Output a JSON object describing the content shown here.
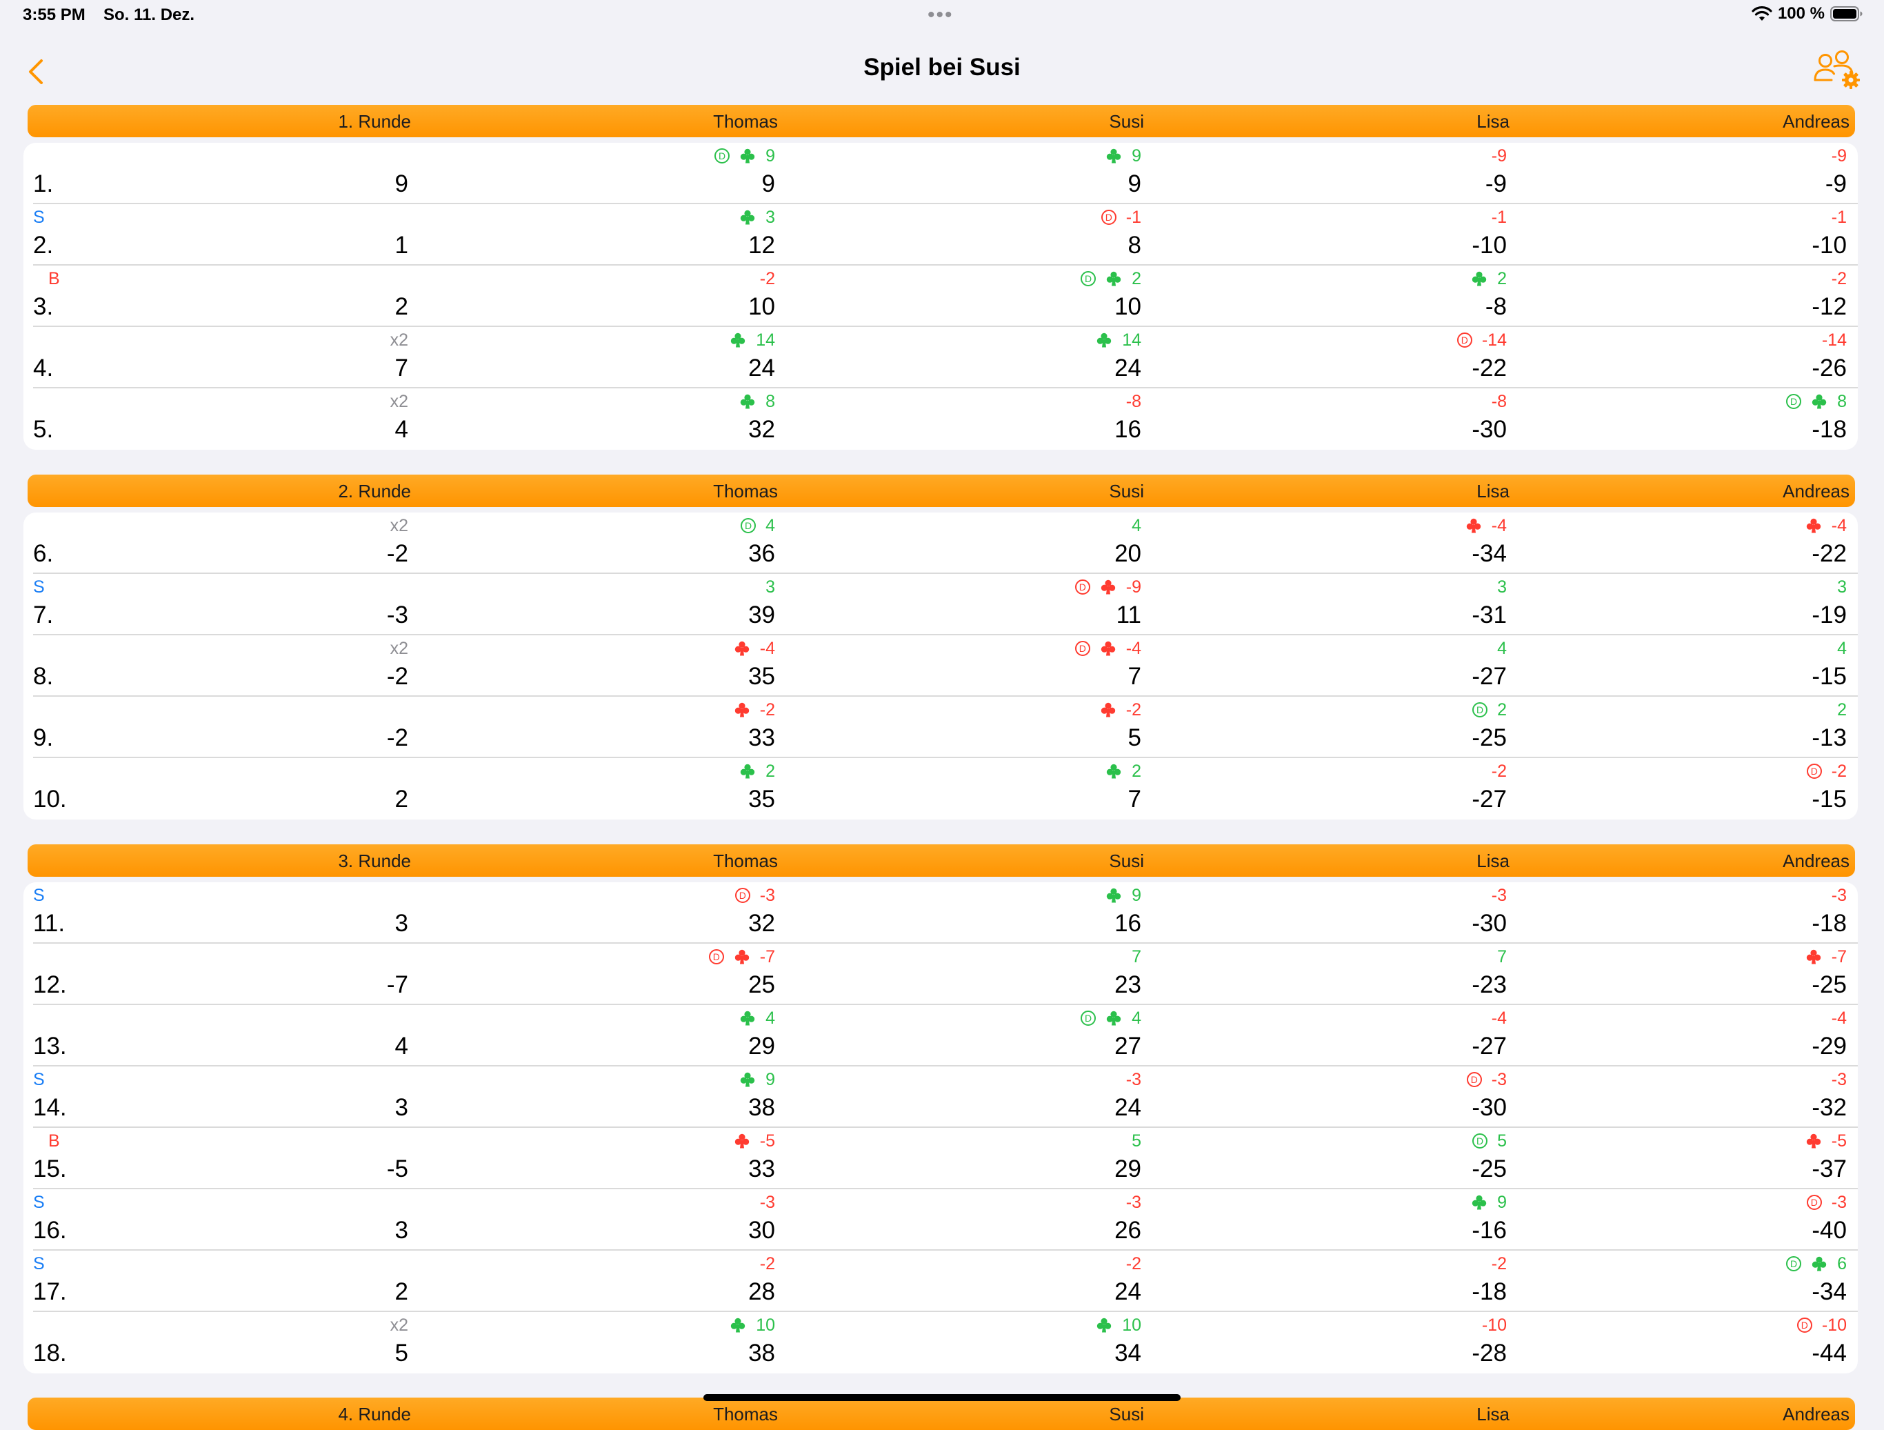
{
  "status": {
    "time": "3:55 PM",
    "date": "So. 11. Dez.",
    "dots": "•••",
    "battery": "100 %"
  },
  "nav": {
    "title": "Spiel bei Susi"
  },
  "colors": {
    "accent": "#ff9500",
    "positive": "#2bc04b",
    "negative": "#ff3b30",
    "solo": "#1a7ef5",
    "multiplier": "#8e8e93"
  },
  "sections": [
    {
      "headers": [
        "1. Runde",
        "Thomas",
        "Susi",
        "Lisa",
        "Andreas"
      ],
      "rows": [
        {
          "n": "1.",
          "mark": "",
          "mult": "",
          "game": "9",
          "cells": [
            {
              "delta": "9",
              "total": "9",
              "dealer": true,
              "club": true
            },
            {
              "delta": "9",
              "total": "9",
              "dealer": false,
              "club": true
            },
            {
              "delta": "-9",
              "total": "-9",
              "dealer": false,
              "club": false
            },
            {
              "delta": "-9",
              "total": "-9",
              "dealer": false,
              "club": false
            }
          ]
        },
        {
          "n": "2.",
          "mark": "S",
          "mult": "",
          "game": "1",
          "cells": [
            {
              "delta": "3",
              "total": "12",
              "dealer": false,
              "club": true
            },
            {
              "delta": "-1",
              "total": "8",
              "dealer": true,
              "club": false
            },
            {
              "delta": "-1",
              "total": "-10",
              "dealer": false,
              "club": false
            },
            {
              "delta": "-1",
              "total": "-10",
              "dealer": false,
              "club": false
            }
          ]
        },
        {
          "n": "3.",
          "mark": "B",
          "mult": "",
          "game": "2",
          "cells": [
            {
              "delta": "-2",
              "total": "10",
              "dealer": false,
              "club": false
            },
            {
              "delta": "2",
              "total": "10",
              "dealer": true,
              "club": true
            },
            {
              "delta": "2",
              "total": "-8",
              "dealer": false,
              "club": true
            },
            {
              "delta": "-2",
              "total": "-12",
              "dealer": false,
              "club": false
            }
          ]
        },
        {
          "n": "4.",
          "mark": "",
          "mult": "x2",
          "game": "7",
          "cells": [
            {
              "delta": "14",
              "total": "24",
              "dealer": false,
              "club": true
            },
            {
              "delta": "14",
              "total": "24",
              "dealer": false,
              "club": true
            },
            {
              "delta": "-14",
              "total": "-22",
              "dealer": true,
              "club": false
            },
            {
              "delta": "-14",
              "total": "-26",
              "dealer": false,
              "club": false
            }
          ]
        },
        {
          "n": "5.",
          "mark": "",
          "mult": "x2",
          "game": "4",
          "cells": [
            {
              "delta": "8",
              "total": "32",
              "dealer": false,
              "club": true
            },
            {
              "delta": "-8",
              "total": "16",
              "dealer": false,
              "club": false
            },
            {
              "delta": "-8",
              "total": "-30",
              "dealer": false,
              "club": false
            },
            {
              "delta": "8",
              "total": "-18",
              "dealer": true,
              "club": true
            }
          ]
        }
      ]
    },
    {
      "headers": [
        "2. Runde",
        "Thomas",
        "Susi",
        "Lisa",
        "Andreas"
      ],
      "rows": [
        {
          "n": "6.",
          "mark": "",
          "mult": "x2",
          "game": "-2",
          "cells": [
            {
              "delta": "4",
              "total": "36",
              "dealer": true,
              "club": false
            },
            {
              "delta": "4",
              "total": "20",
              "dealer": false,
              "club": false
            },
            {
              "delta": "-4",
              "total": "-34",
              "dealer": false,
              "club": true
            },
            {
              "delta": "-4",
              "total": "-22",
              "dealer": false,
              "club": true
            }
          ]
        },
        {
          "n": "7.",
          "mark": "S",
          "mult": "",
          "game": "-3",
          "cells": [
            {
              "delta": "3",
              "total": "39",
              "dealer": false,
              "club": false
            },
            {
              "delta": "-9",
              "total": "11",
              "dealer": true,
              "club": true
            },
            {
              "delta": "3",
              "total": "-31",
              "dealer": false,
              "club": false
            },
            {
              "delta": "3",
              "total": "-19",
              "dealer": false,
              "club": false
            }
          ]
        },
        {
          "n": "8.",
          "mark": "",
          "mult": "x2",
          "game": "-2",
          "cells": [
            {
              "delta": "-4",
              "total": "35",
              "dealer": false,
              "club": true
            },
            {
              "delta": "-4",
              "total": "7",
              "dealer": true,
              "club": true
            },
            {
              "delta": "4",
              "total": "-27",
              "dealer": false,
              "club": false
            },
            {
              "delta": "4",
              "total": "-15",
              "dealer": false,
              "club": false
            }
          ]
        },
        {
          "n": "9.",
          "mark": "",
          "mult": "",
          "game": "-2",
          "cells": [
            {
              "delta": "-2",
              "total": "33",
              "dealer": false,
              "club": true
            },
            {
              "delta": "-2",
              "total": "5",
              "dealer": false,
              "club": true
            },
            {
              "delta": "2",
              "total": "-25",
              "dealer": true,
              "club": false
            },
            {
              "delta": "2",
              "total": "-13",
              "dealer": false,
              "club": false
            }
          ]
        },
        {
          "n": "10.",
          "mark": "",
          "mult": "",
          "game": "2",
          "cells": [
            {
              "delta": "2",
              "total": "35",
              "dealer": false,
              "club": true
            },
            {
              "delta": "2",
              "total": "7",
              "dealer": false,
              "club": true
            },
            {
              "delta": "-2",
              "total": "-27",
              "dealer": false,
              "club": false
            },
            {
              "delta": "-2",
              "total": "-15",
              "dealer": true,
              "club": false
            }
          ]
        }
      ]
    },
    {
      "headers": [
        "3. Runde",
        "Thomas",
        "Susi",
        "Lisa",
        "Andreas"
      ],
      "rows": [
        {
          "n": "11.",
          "mark": "S",
          "mult": "",
          "game": "3",
          "cells": [
            {
              "delta": "-3",
              "total": "32",
              "dealer": true,
              "club": false
            },
            {
              "delta": "9",
              "total": "16",
              "dealer": false,
              "club": true
            },
            {
              "delta": "-3",
              "total": "-30",
              "dealer": false,
              "club": false
            },
            {
              "delta": "-3",
              "total": "-18",
              "dealer": false,
              "club": false
            }
          ]
        },
        {
          "n": "12.",
          "mark": "",
          "mult": "",
          "game": "-7",
          "cells": [
            {
              "delta": "-7",
              "total": "25",
              "dealer": true,
              "club": true
            },
            {
              "delta": "7",
              "total": "23",
              "dealer": false,
              "club": false
            },
            {
              "delta": "7",
              "total": "-23",
              "dealer": false,
              "club": false
            },
            {
              "delta": "-7",
              "total": "-25",
              "dealer": false,
              "club": true
            }
          ]
        },
        {
          "n": "13.",
          "mark": "",
          "mult": "",
          "game": "4",
          "cells": [
            {
              "delta": "4",
              "total": "29",
              "dealer": false,
              "club": true
            },
            {
              "delta": "4",
              "total": "27",
              "dealer": true,
              "club": true
            },
            {
              "delta": "-4",
              "total": "-27",
              "dealer": false,
              "club": false
            },
            {
              "delta": "-4",
              "total": "-29",
              "dealer": false,
              "club": false
            }
          ]
        },
        {
          "n": "14.",
          "mark": "S",
          "mult": "",
          "game": "3",
          "cells": [
            {
              "delta": "9",
              "total": "38",
              "dealer": false,
              "club": true
            },
            {
              "delta": "-3",
              "total": "24",
              "dealer": false,
              "club": false
            },
            {
              "delta": "-3",
              "total": "-30",
              "dealer": true,
              "club": false
            },
            {
              "delta": "-3",
              "total": "-32",
              "dealer": false,
              "club": false
            }
          ]
        },
        {
          "n": "15.",
          "mark": "B",
          "mult": "",
          "game": "-5",
          "cells": [
            {
              "delta": "-5",
              "total": "33",
              "dealer": false,
              "club": true
            },
            {
              "delta": "5",
              "total": "29",
              "dealer": false,
              "club": false
            },
            {
              "delta": "5",
              "total": "-25",
              "dealer": true,
              "club": false
            },
            {
              "delta": "-5",
              "total": "-37",
              "dealer": false,
              "club": true
            }
          ]
        },
        {
          "n": "16.",
          "mark": "S",
          "mult": "",
          "game": "3",
          "cells": [
            {
              "delta": "-3",
              "total": "30",
              "dealer": false,
              "club": false
            },
            {
              "delta": "-3",
              "total": "26",
              "dealer": false,
              "club": false
            },
            {
              "delta": "9",
              "total": "-16",
              "dealer": false,
              "club": true
            },
            {
              "delta": "-3",
              "total": "-40",
              "dealer": true,
              "club": false
            }
          ]
        },
        {
          "n": "17.",
          "mark": "S",
          "mult": "",
          "game": "2",
          "cells": [
            {
              "delta": "-2",
              "total": "28",
              "dealer": false,
              "club": false
            },
            {
              "delta": "-2",
              "total": "24",
              "dealer": false,
              "club": false
            },
            {
              "delta": "-2",
              "total": "-18",
              "dealer": false,
              "club": false
            },
            {
              "delta": "6",
              "total": "-34",
              "dealer": true,
              "club": true
            }
          ]
        },
        {
          "n": "18.",
          "mark": "",
          "mult": "x2",
          "game": "5",
          "cells": [
            {
              "delta": "10",
              "total": "38",
              "dealer": false,
              "club": true
            },
            {
              "delta": "10",
              "total": "34",
              "dealer": false,
              "club": true
            },
            {
              "delta": "-10",
              "total": "-28",
              "dealer": false,
              "club": false
            },
            {
              "delta": "-10",
              "total": "-44",
              "dealer": true,
              "club": false
            }
          ]
        }
      ]
    },
    {
      "headers": [
        "4. Runde",
        "Thomas",
        "Susi",
        "Lisa",
        "Andreas"
      ],
      "rows": []
    }
  ]
}
